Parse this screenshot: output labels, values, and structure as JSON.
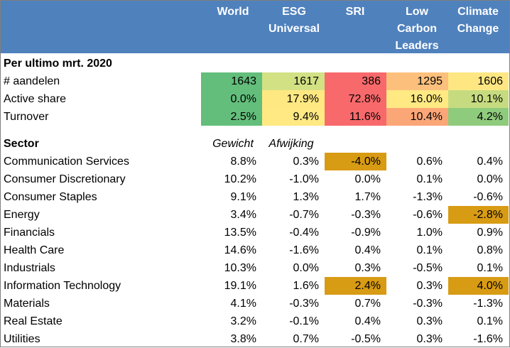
{
  "columns": [
    {
      "id": "world",
      "label": "World"
    },
    {
      "id": "esg",
      "label": "ESG\nUniversal"
    },
    {
      "id": "sri",
      "label": "SRI"
    },
    {
      "id": "lcl",
      "label": "Low\nCarbon\nLeaders"
    },
    {
      "id": "cc",
      "label": "Climate\nChange"
    }
  ],
  "summary": {
    "title": "Per ultimo mrt. 2020",
    "rows": [
      {
        "label": "# aandelen",
        "cells": [
          {
            "value": "1643",
            "color": "#63be7b"
          },
          {
            "value": "1617",
            "color": "#d2e183"
          },
          {
            "value": "386",
            "color": "#f8696b"
          },
          {
            "value": "1295",
            "color": "#fcc07c"
          },
          {
            "value": "1606",
            "color": "#fee783"
          }
        ]
      },
      {
        "label": "Active share",
        "cells": [
          {
            "value": "0.0%",
            "color": "#63be7b"
          },
          {
            "value": "17.9%",
            "color": "#fee882"
          },
          {
            "value": "72.8%",
            "color": "#f8696b"
          },
          {
            "value": "16.0%",
            "color": "#fee983"
          },
          {
            "value": "10.1%",
            "color": "#c6db80"
          }
        ]
      },
      {
        "label": "Turnover",
        "cells": [
          {
            "value": "2.5%",
            "color": "#63be7b"
          },
          {
            "value": "9.4%",
            "color": "#fee983"
          },
          {
            "value": "11.6%",
            "color": "#f8696b"
          },
          {
            "value": "10.4%",
            "color": "#fba677"
          },
          {
            "value": "4.2%",
            "color": "#8fcb7d"
          }
        ]
      }
    ]
  },
  "sector": {
    "title": "Sector",
    "sub_weight": "Gewicht",
    "sub_dev": "Afwijking",
    "highlight_color": "#d89b14",
    "rows": [
      {
        "label": "Communication Services",
        "values": [
          "8.8%",
          "0.3%",
          "-4.0%",
          "0.6%",
          "0.4%"
        ],
        "highlight": [
          false,
          false,
          true,
          false,
          false
        ]
      },
      {
        "label": "Consumer Discretionary",
        "values": [
          "10.2%",
          "-1.0%",
          "0.0%",
          "0.1%",
          "0.0%"
        ],
        "highlight": [
          false,
          false,
          false,
          false,
          false
        ]
      },
      {
        "label": "Consumer Staples",
        "values": [
          "9.1%",
          "1.3%",
          "1.7%",
          "-1.3%",
          "-0.6%"
        ],
        "highlight": [
          false,
          false,
          false,
          false,
          false
        ]
      },
      {
        "label": "Energy",
        "values": [
          "3.4%",
          "-0.7%",
          "-0.3%",
          "-0.6%",
          "-2.8%"
        ],
        "highlight": [
          false,
          false,
          false,
          false,
          true
        ]
      },
      {
        "label": "Financials",
        "values": [
          "13.5%",
          "-0.4%",
          "-0.9%",
          "1.0%",
          "0.9%"
        ],
        "highlight": [
          false,
          false,
          false,
          false,
          false
        ]
      },
      {
        "label": "Health Care",
        "values": [
          "14.6%",
          "-1.6%",
          "0.4%",
          "0.1%",
          "0.8%"
        ],
        "highlight": [
          false,
          false,
          false,
          false,
          false
        ]
      },
      {
        "label": "Industrials",
        "values": [
          "10.3%",
          "0.0%",
          "0.3%",
          "-0.5%",
          "0.1%"
        ],
        "highlight": [
          false,
          false,
          false,
          false,
          false
        ]
      },
      {
        "label": "Information Technology",
        "values": [
          "19.1%",
          "1.6%",
          "2.4%",
          "0.3%",
          "4.0%"
        ],
        "highlight": [
          false,
          false,
          true,
          false,
          true
        ]
      },
      {
        "label": "Materials",
        "values": [
          "4.1%",
          "-0.3%",
          "0.7%",
          "-0.3%",
          "-1.3%"
        ],
        "highlight": [
          false,
          false,
          false,
          false,
          false
        ]
      },
      {
        "label": "Real Estate",
        "values": [
          "3.2%",
          "-0.1%",
          "0.4%",
          "0.3%",
          "0.1%"
        ],
        "highlight": [
          false,
          false,
          false,
          false,
          false
        ]
      },
      {
        "label": "Utilities",
        "values": [
          "3.8%",
          "0.7%",
          "-0.5%",
          "0.3%",
          "-1.6%"
        ],
        "highlight": [
          false,
          false,
          false,
          false,
          false
        ]
      }
    ]
  }
}
